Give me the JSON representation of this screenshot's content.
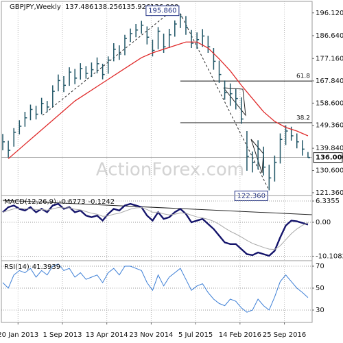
{
  "chart_data": [
    {
      "type": "ohlc",
      "title": "GBPJPY,Weekly",
      "last": {
        "values": [
          137.486,
          138.256,
          135.926,
          136
        ],
        "value_labels": [
          "137.486",
          "138.256",
          "135.926",
          "136.000"
        ]
      },
      "watermark": "ActionForex.com",
      "xlim": [
        0,
        224
      ],
      "ylim": [
        120.2,
        200.9
      ],
      "yticks": [
        {
          "value": 196.12,
          "label": "196.120"
        },
        {
          "value": 186.64,
          "label": "186.640"
        },
        {
          "value": 177.16,
          "label": "177.160"
        },
        {
          "value": 167.84,
          "label": "167.840"
        },
        {
          "value": 158.6,
          "label": "158.600"
        },
        {
          "value": 149.36,
          "label": "149.360"
        },
        {
          "value": 139.84,
          "label": "139.840"
        },
        {
          "value": 130.6,
          "label": "130.600"
        },
        {
          "value": 121.36,
          "label": "121.360"
        }
      ],
      "grid": false,
      "bars": {
        "color": "#1f5566",
        "x": [
          1,
          5,
          9,
          13,
          17,
          21,
          25,
          29,
          33,
          37,
          41,
          45,
          49,
          53,
          57,
          61,
          65,
          69,
          73,
          77,
          81,
          85,
          89,
          93,
          97,
          101,
          105,
          109,
          113,
          117,
          121,
          125,
          129,
          133,
          137,
          141,
          145,
          149,
          153,
          157,
          161,
          165,
          169,
          173,
          177,
          181,
          185,
          189,
          193,
          197,
          201,
          205,
          209,
          213,
          217,
          221
        ],
        "high": [
          145.8,
          143.0,
          148.2,
          151.5,
          155.0,
          158.0,
          157.5,
          160.8,
          159.5,
          166.0,
          170.5,
          169.8,
          173.5,
          172.8,
          175.2,
          174.0,
          175.5,
          177.6,
          175.0,
          178.0,
          183.5,
          182.6,
          187.0,
          189.6,
          191.5,
          192.8,
          190.5,
          185.0,
          190.2,
          187.5,
          189.5,
          193.0,
          195.86,
          194.8,
          189.0,
          188.0,
          189.4,
          186.6,
          181.5,
          176.2,
          168.0,
          166.8,
          164.5,
          161.0,
          147.0,
          138.5,
          143.2,
          140.5,
          133.0,
          136.8,
          146.0,
          149.4,
          148.8,
          146.0,
          143.2,
          138.256
        ],
        "low": [
          139.0,
          136.0,
          140.5,
          145.6,
          148.8,
          151.5,
          151.8,
          154.0,
          154.8,
          157.0,
          163.5,
          163.2,
          165.8,
          166.5,
          168.4,
          168.8,
          169.5,
          171.0,
          168.5,
          170.8,
          176.0,
          176.6,
          178.5,
          184.0,
          186.0,
          187.5,
          183.0,
          178.0,
          181.0,
          179.5,
          181.5,
          186.2,
          189.8,
          187.0,
          181.5,
          181.2,
          182.0,
          179.5,
          172.5,
          167.0,
          160.0,
          157.5,
          156.0,
          150.0,
          130.5,
          129.8,
          131.0,
          128.5,
          122.36,
          126.0,
          133.5,
          141.2,
          143.0,
          139.8,
          136.8,
          135.926
        ],
        "close": [
          142.5,
          139.0,
          146.5,
          149.0,
          152.5,
          156.0,
          154.0,
          158.5,
          157.0,
          163.5,
          168.0,
          166.0,
          171.5,
          169.0,
          173.0,
          171.0,
          172.5,
          175.0,
          170.5,
          176.5,
          181.0,
          179.0,
          185.5,
          187.5,
          189.0,
          191.0,
          186.0,
          180.5,
          188.5,
          182.0,
          187.0,
          191.5,
          194.5,
          190.0,
          183.5,
          185.0,
          186.5,
          182.0,
          176.0,
          170.5,
          163.0,
          162.5,
          160.5,
          152.0,
          136.5,
          134.0,
          139.5,
          132.0,
          127.5,
          134.0,
          143.5,
          147.0,
          145.0,
          142.5,
          139.5,
          136.0
        ]
      },
      "overlay": {
        "color": "#e02a2a",
        "x": [
          5,
          13,
          21,
          29,
          37,
          45,
          53,
          61,
          69,
          77,
          85,
          93,
          101,
          109,
          117,
          125,
          133,
          141,
          149,
          157,
          165,
          173,
          181,
          189,
          197,
          205,
          213,
          221
        ],
        "values": [
          135.5,
          139.5,
          143.5,
          147.5,
          151.5,
          155.5,
          159.5,
          162.5,
          165.5,
          168.5,
          171.5,
          174.5,
          177.5,
          179.5,
          181.0,
          182.5,
          184.0,
          184.0,
          181.5,
          177.0,
          172.0,
          166.0,
          160.5,
          155.0,
          151.0,
          148.5,
          147.0,
          145.0
        ]
      },
      "annotations": [
        {
          "value": 195.86,
          "label": "195.860",
          "x": 129
        },
        {
          "value": 122.36,
          "label": "122.360",
          "x": 193
        }
      ],
      "fib_levels": [
        61.8,
        38.2
      ]
    },
    {
      "type": "line",
      "title": "MACD(12,26,9)",
      "xlim": [
        0,
        224
      ],
      "ylim": [
        -11.45,
        7.98
      ],
      "yticks": [
        6.3355,
        {
          "value": 0,
          "label": "0.00"
        },
        -10.1082
      ],
      "grid": true,
      "x": [
        1,
        5,
        9,
        13,
        17,
        21,
        25,
        29,
        33,
        37,
        41,
        45,
        49,
        53,
        57,
        61,
        65,
        69,
        73,
        77,
        81,
        85,
        89,
        93,
        97,
        101,
        105,
        109,
        113,
        117,
        121,
        125,
        129,
        133,
        137,
        141,
        145,
        149,
        153,
        157,
        161,
        165,
        169,
        173,
        177,
        181,
        185,
        189,
        193,
        197,
        201,
        205,
        209,
        213,
        217,
        221
      ],
      "series": [
        {
          "color": "#14146b",
          "values": [
            3.0,
            4.5,
            5.0,
            4.0,
            3.5,
            4.5,
            3.0,
            4.0,
            3.0,
            5.0,
            5.5,
            4.0,
            4.5,
            3.0,
            3.5,
            2.0,
            1.5,
            2.0,
            0.5,
            2.5,
            4.0,
            3.5,
            5.0,
            5.5,
            5.0,
            4.5,
            2.0,
            0.5,
            3.0,
            1.0,
            1.5,
            3.0,
            4.0,
            2.5,
            0.0,
            0.5,
            1.0,
            -0.5,
            -2.0,
            -4.0,
            -6.0,
            -6.5,
            -6.5,
            -8.0,
            -9.5,
            -9.8,
            -9.0,
            -9.5,
            -10.0,
            -8.5,
            -4.5,
            -1.0,
            0.5,
            0.3,
            -0.2,
            -0.6773
          ]
        },
        {
          "color": "#a8a8a8",
          "values": [
            3.0,
            3.5,
            4.0,
            4.2,
            4.0,
            4.0,
            3.8,
            3.8,
            3.6,
            4.0,
            4.4,
            4.3,
            4.3,
            3.9,
            3.7,
            3.2,
            2.7,
            2.4,
            1.8,
            1.9,
            2.4,
            2.7,
            3.3,
            3.9,
            4.3,
            4.4,
            3.8,
            3.0,
            3.0,
            2.5,
            2.2,
            2.4,
            2.8,
            2.7,
            2.1,
            1.6,
            1.3,
            0.9,
            0.3,
            -0.6,
            -1.7,
            -2.7,
            -3.5,
            -4.4,
            -5.4,
            -6.3,
            -6.9,
            -7.5,
            -8.0,
            -8.1,
            -7.0,
            -5.2,
            -3.4,
            -2.0,
            -0.9,
            -0.1242
          ]
        }
      ]
    },
    {
      "type": "line",
      "title": "RSI(14)",
      "xlim": [
        0,
        224
      ],
      "ylim": [
        18.75,
        75
      ],
      "yticks": [
        70,
        50,
        30
      ],
      "grid": true,
      "xticks": [
        {
          "value": 12,
          "label": "20 Jan 2013"
        },
        {
          "value": 44,
          "label": "1 Sep 2013"
        },
        {
          "value": 76,
          "label": "13 Apr 2014"
        },
        {
          "value": 108,
          "label": "23 Nov 2014"
        },
        {
          "value": 140,
          "label": "5 Jul 2015"
        },
        {
          "value": 172,
          "label": "14 Feb 2016"
        },
        {
          "value": 204,
          "label": "25 Sep 2016"
        }
      ],
      "x": [
        1,
        5,
        9,
        13,
        17,
        21,
        25,
        29,
        33,
        37,
        41,
        45,
        49,
        53,
        57,
        61,
        65,
        69,
        73,
        77,
        81,
        85,
        89,
        93,
        97,
        101,
        105,
        109,
        113,
        117,
        121,
        125,
        129,
        133,
        137,
        141,
        145,
        149,
        153,
        157,
        161,
        165,
        169,
        173,
        177,
        181,
        185,
        189,
        193,
        197,
        201,
        205,
        209,
        213,
        217,
        221
      ],
      "series": [
        {
          "color": "#3d7fd6",
          "values": [
            55,
            50,
            62,
            66,
            64,
            68,
            60,
            66,
            62,
            70,
            72,
            66,
            68,
            60,
            64,
            58,
            60,
            62,
            55,
            64,
            68,
            62,
            70,
            70,
            68,
            66,
            55,
            48,
            62,
            52,
            60,
            64,
            68,
            58,
            48,
            52,
            54,
            46,
            40,
            36,
            34,
            40,
            38,
            32,
            28,
            30,
            40,
            34,
            30,
            42,
            56,
            62,
            56,
            50,
            46,
            41.3939
          ]
        }
      ]
    }
  ]
}
